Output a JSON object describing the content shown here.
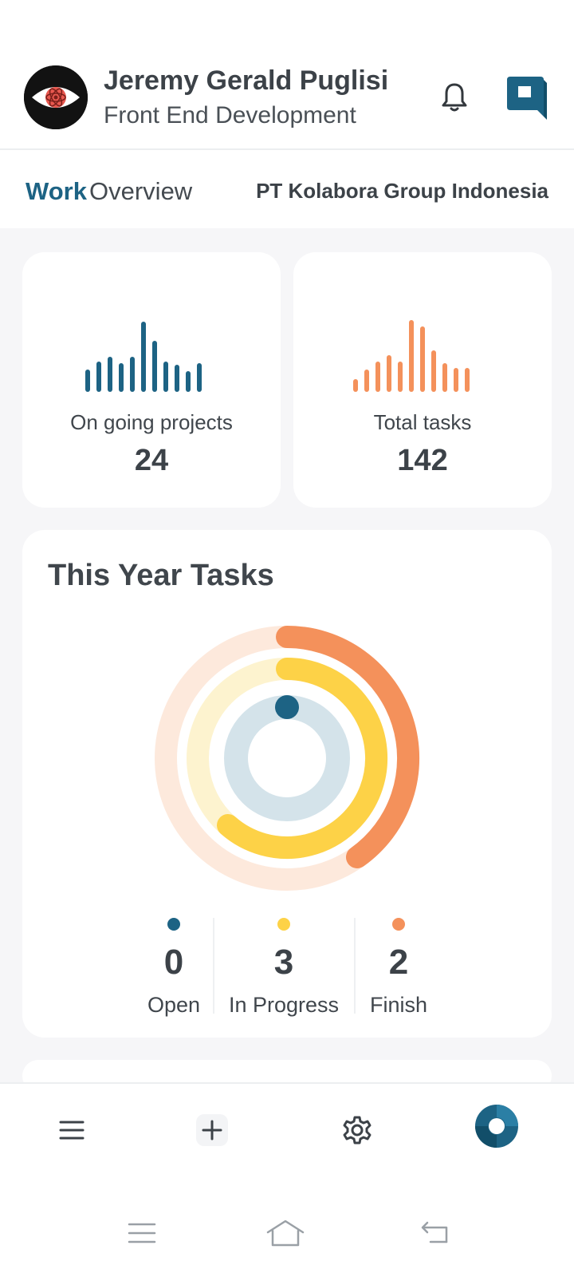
{
  "user": {
    "name": "Jeremy Gerald Puglisi",
    "role": "Front End Development",
    "avatar_icon": "react-eye-avatar"
  },
  "header_icons": {
    "notifications": "bell-icon",
    "brand": "kolabora-logo-icon"
  },
  "section": {
    "title_bold": "Work",
    "title_rest": "Overview",
    "company": "PT Kolabora Group Indonesia"
  },
  "stats": [
    {
      "label": "On going projects",
      "value": "24",
      "color": "#1d6384"
    },
    {
      "label": "Total tasks",
      "value": "142",
      "color": "#f4915b"
    }
  ],
  "year_tasks": {
    "title": "This Year Tasks",
    "legend": [
      {
        "label": "Open",
        "value": "0",
        "color": "#1d6384"
      },
      {
        "label": "In Progress",
        "value": "3",
        "color": "#fdd247"
      },
      {
        "label": "Finish",
        "value": "2",
        "color": "#f4915b"
      }
    ]
  },
  "colors": {
    "accent": "#1d6384",
    "orange": "#f4915b",
    "yellow": "#fdd247",
    "background": "#f6f6f8"
  },
  "tabbar": {
    "items": [
      "menu-icon",
      "add-icon",
      "settings-icon",
      "profile-logo-icon"
    ]
  },
  "system_nav": [
    "recents-icon",
    "home-icon",
    "back-icon"
  ]
}
